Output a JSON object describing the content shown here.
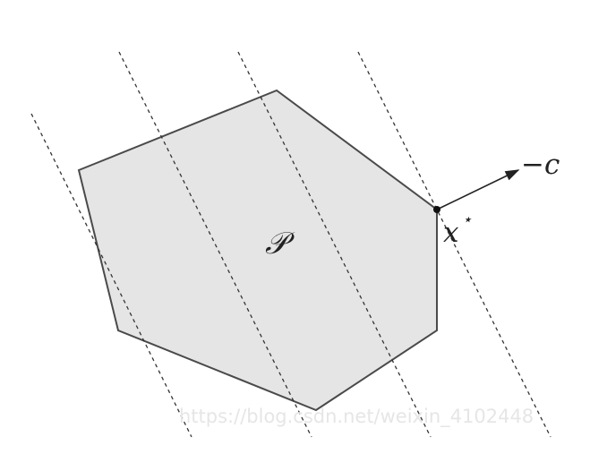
{
  "diagram": {
    "region_label": "𝒫",
    "optimum_label": "x",
    "optimum_superscript": "⋆",
    "direction_label": "−c",
    "watermark_text": "https://blog.csdn.net/weixin_4102448"
  },
  "colors": {
    "region_fill": "#e5e5e5",
    "region_stroke": "#4a4a4a",
    "dashed_line": "#333333",
    "arrow": "#222222",
    "watermark": "#e6e6e6"
  }
}
